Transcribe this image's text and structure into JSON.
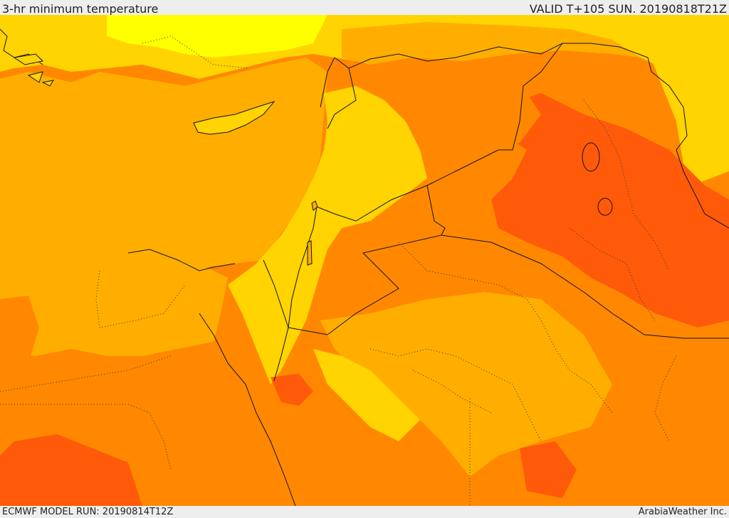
{
  "header": {
    "title": "3-hr minimum temperature",
    "valid": "VALID T+105 SUN. 20190818T21Z"
  },
  "footer": {
    "model_run": "ECMWF MODEL RUN: 20190814T12Z",
    "credit": "ArabiaWeather Inc."
  },
  "map": {
    "colors": {
      "sea": "#ffae00",
      "warm": "#ff8800",
      "hot": "#ff5a0a",
      "mild": "#ffd400",
      "cool": "#ffff00",
      "border": "#111111"
    }
  }
}
